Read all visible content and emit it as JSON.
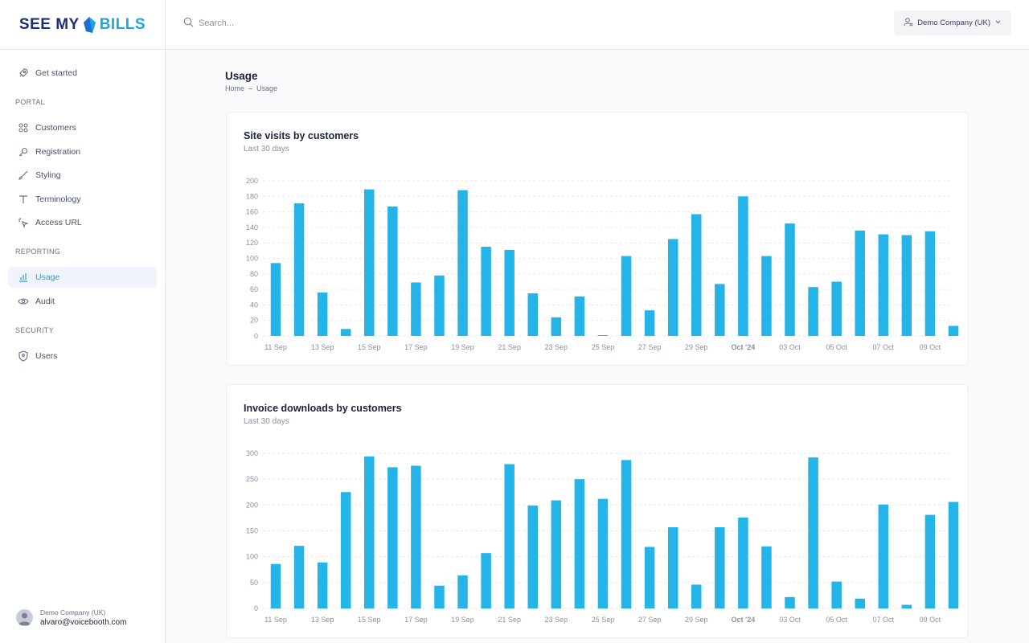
{
  "brand": {
    "logo_part1": "SEE MY",
    "logo_part2": "BILLS"
  },
  "sidebar": {
    "get_started": "Get started",
    "sections": [
      {
        "title": "PORTAL",
        "items": [
          "Customers",
          "Registration",
          "Styling",
          "Terminology",
          "Access URL"
        ]
      },
      {
        "title": "REPORTING",
        "items": [
          "Usage",
          "Audit"
        ]
      },
      {
        "title": "SECURITY",
        "items": [
          "Users"
        ]
      }
    ],
    "active_item": "Usage",
    "user": {
      "company": "Demo Company (UK)",
      "email": "alvaro@voicebooth.com"
    }
  },
  "header": {
    "search_placeholder": "Search...",
    "company_selector": "Demo Company (UK)"
  },
  "page": {
    "title": "Usage",
    "breadcrumb": [
      "Home",
      "Usage"
    ]
  },
  "colors": {
    "accent": "#1aa6df",
    "bar": "#24b4e8",
    "brand_dark": "#1c2c7a"
  },
  "chart_data": [
    {
      "type": "bar",
      "title": "Site visits by customers",
      "subtitle": "Last 30 days",
      "ylim": [
        0,
        200
      ],
      "yticks": [
        0,
        20,
        40,
        60,
        80,
        100,
        120,
        140,
        160,
        180,
        200
      ],
      "grid": true,
      "x_tick_labels": [
        "11 Sep",
        "13 Sep",
        "15 Sep",
        "17 Sep",
        "19 Sep",
        "21 Sep",
        "23 Sep",
        "25 Sep",
        "27 Sep",
        "29 Sep",
        "Oct '24",
        "03 Oct",
        "05 Oct",
        "07 Oct",
        "09 Oct"
      ],
      "values": [
        94,
        171,
        56,
        9,
        189,
        167,
        69,
        78,
        188,
        115,
        111,
        55,
        24,
        51,
        1,
        103,
        33,
        125,
        157,
        67,
        180,
        103,
        145,
        63,
        70,
        136,
        131,
        130,
        135,
        13
      ]
    },
    {
      "type": "bar",
      "title": "Invoice downloads by customers",
      "subtitle": "Last 30 days",
      "ylim": [
        0,
        300
      ],
      "yticks": [
        0,
        50,
        100,
        150,
        200,
        250,
        300
      ],
      "grid": true,
      "x_tick_labels": [
        "11 Sep",
        "13 Sep",
        "15 Sep",
        "17 Sep",
        "19 Sep",
        "21 Sep",
        "23 Sep",
        "25 Sep",
        "27 Sep",
        "29 Sep",
        "Oct '24",
        "03 Oct",
        "05 Oct",
        "07 Oct",
        "09 Oct"
      ],
      "values": [
        86,
        121,
        89,
        225,
        294,
        273,
        276,
        44,
        64,
        107,
        279,
        199,
        209,
        250,
        212,
        287,
        119,
        157,
        46,
        157,
        176,
        120,
        22,
        292,
        52,
        19,
        201,
        7,
        181,
        206
      ]
    }
  ]
}
